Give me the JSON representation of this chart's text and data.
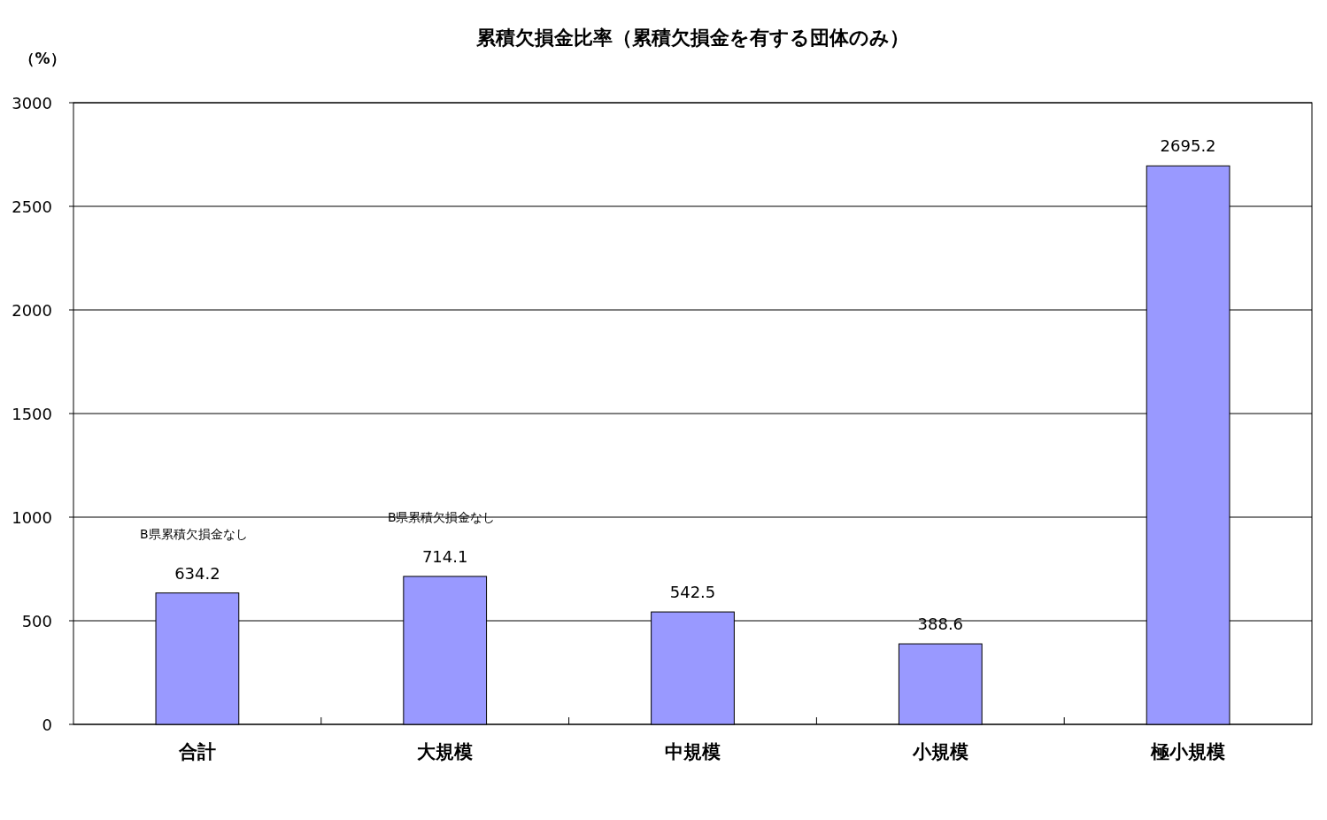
{
  "chart_data": {
    "type": "bar",
    "title": "累積欠損金比率（累積欠損金を有する団体のみ）",
    "ylabel": "（%）",
    "categories": [
      "合計",
      "大規模",
      "中規模",
      "小規模",
      "極小規模"
    ],
    "values": [
      634.2,
      714.1,
      542.5,
      388.6,
      2695.2
    ],
    "color": "#9999ff",
    "data_labels": true,
    "ylim": [
      0,
      3000
    ],
    "yticks": [
      0,
      500,
      1000,
      1500,
      2000,
      2500,
      3000
    ],
    "grid": "y",
    "annotations": [
      "B県累積欠損金なし",
      "B県累積欠損金なし"
    ]
  }
}
